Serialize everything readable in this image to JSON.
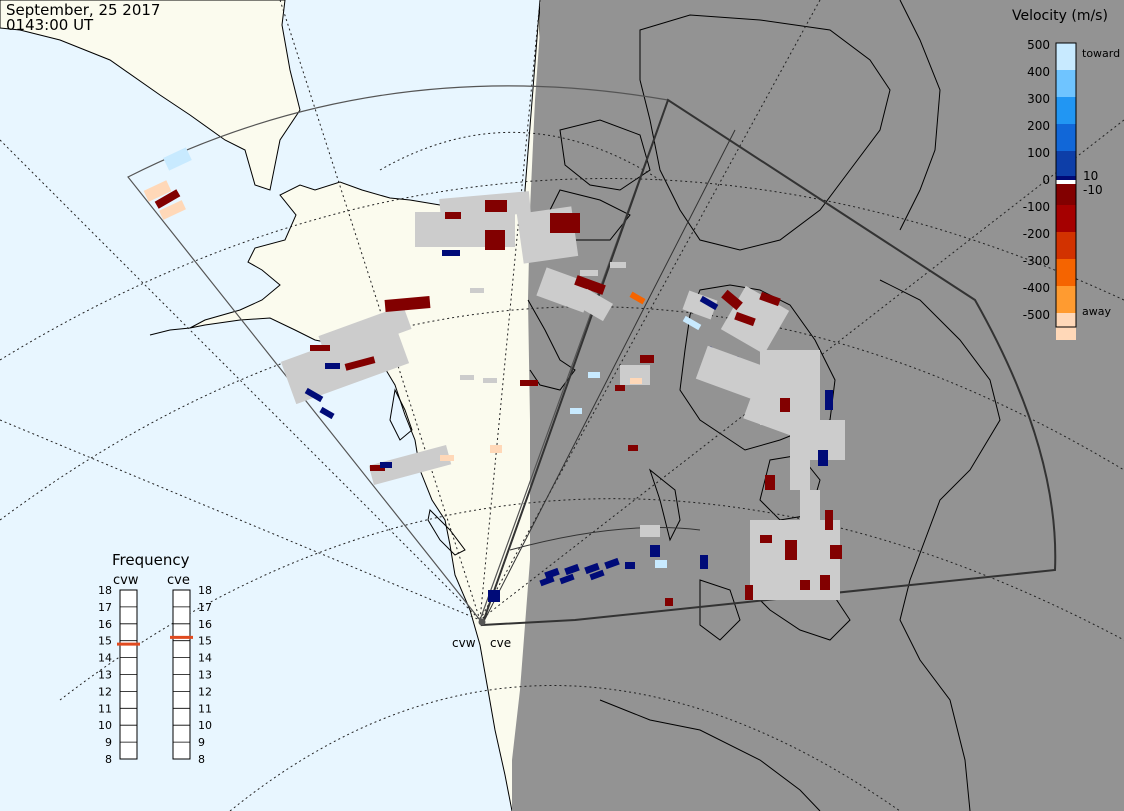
{
  "header": {
    "date": "September, 25 2017",
    "time": "0143:00 UT"
  },
  "colors": {
    "ocean": "#e8f6ff",
    "land": "#fbfbee",
    "night": "#939393",
    "no_data": "#cccccc"
  },
  "velocity_scale": {
    "title": "Velocity (m/s)",
    "ticks": [
      "500",
      "400",
      "300",
      "200",
      "100",
      "10",
      "0",
      "-10",
      "-100",
      "-200",
      "-300",
      "-400",
      "-500"
    ],
    "toward_label": "toward",
    "away_label": "away",
    "colors": [
      "#c8eaff",
      "#6fc4ff",
      "#2196f3",
      "#1167d8",
      "#0d3ea8",
      "#000b78",
      "#ffffff",
      "#820000",
      "#a50000",
      "#d23200",
      "#f56400",
      "#ff9b30",
      "#ffd8b8"
    ]
  },
  "frequency_panel": {
    "title": "Frequency",
    "radars": [
      {
        "code": "cvw",
        "frequency_mhz": 14.8
      },
      {
        "code": "cve",
        "frequency_mhz": 15.2
      }
    ],
    "ticks": [
      "18",
      "17",
      "16",
      "15",
      "14",
      "13",
      "12",
      "11",
      "10",
      "9",
      "8"
    ],
    "marker_color": "#e04a1f"
  },
  "radar_labels": [
    "cvw",
    "cve"
  ]
}
